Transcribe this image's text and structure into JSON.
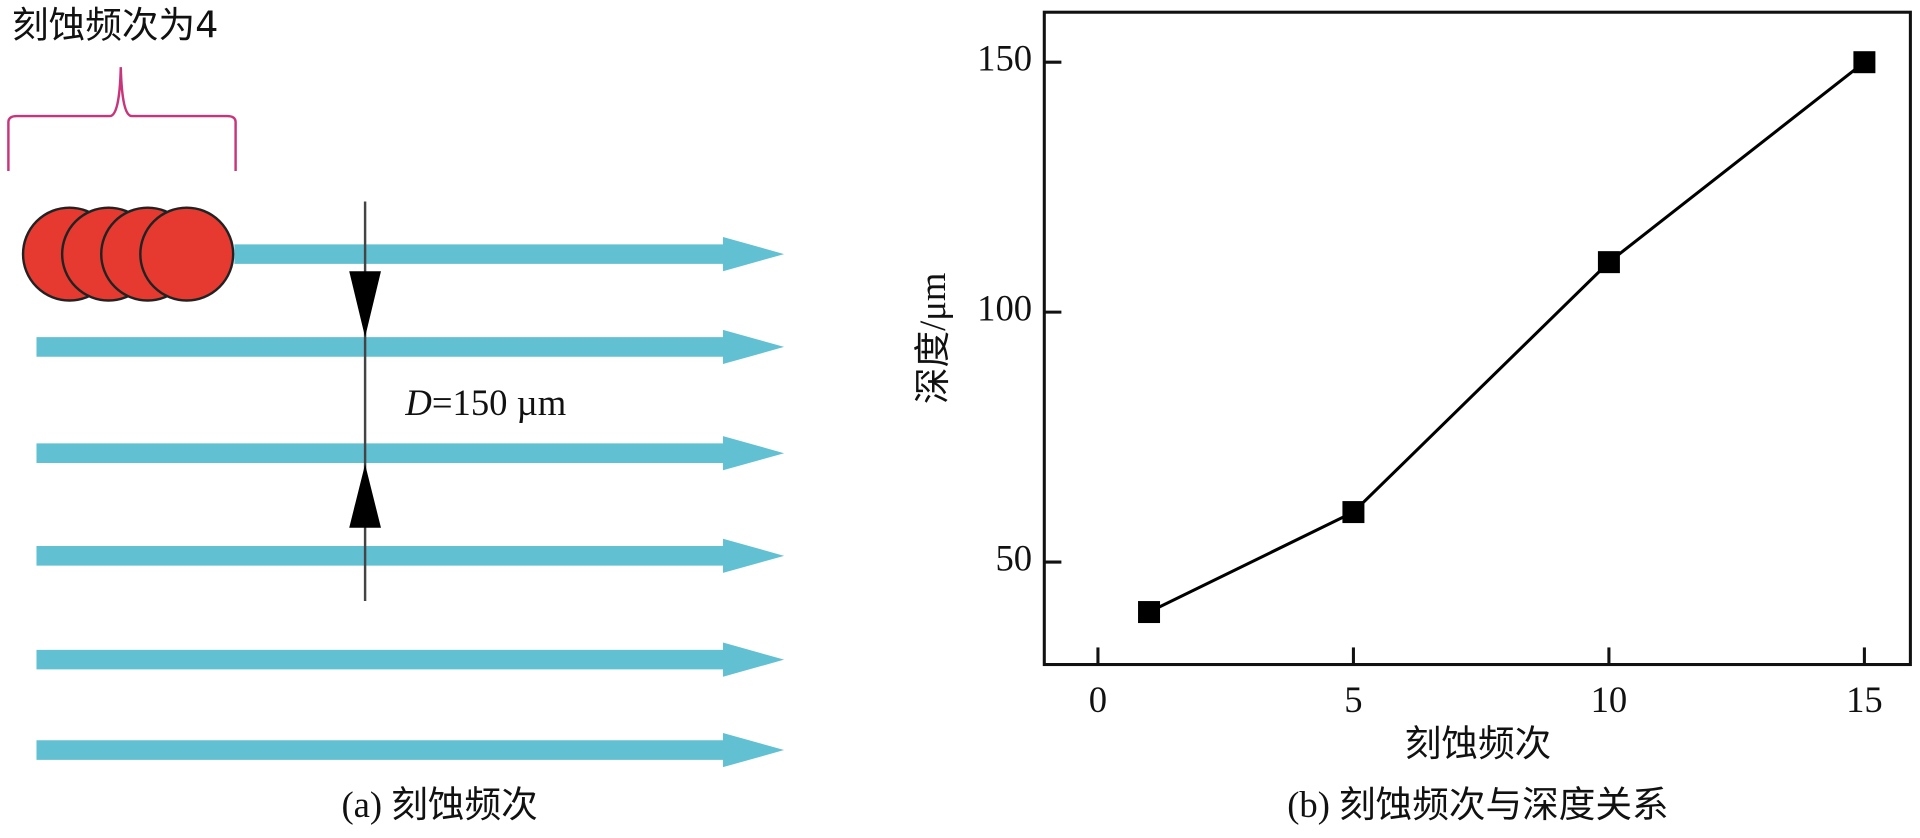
{
  "diagram": {
    "brace_label": "刻蚀频次为4",
    "spacing_symbol": "D",
    "spacing_value": "=150 µm",
    "caption": "(a) 刻蚀频次"
  },
  "chart_data": {
    "type": "line",
    "caption": "(b) 刻蚀频次与深度关系",
    "x_label": "刻蚀频次",
    "y_label": "深度/μm",
    "x": [
      1,
      5,
      10,
      15
    ],
    "values": [
      40,
      60,
      110,
      150
    ],
    "color": "#000000",
    "marker": "square",
    "xlim": [
      -1.05,
      15.9
    ],
    "xticks": [
      0,
      5,
      10,
      15
    ],
    "ylim": [
      29.5,
      160
    ],
    "yticks": [
      50,
      100,
      150
    ]
  }
}
